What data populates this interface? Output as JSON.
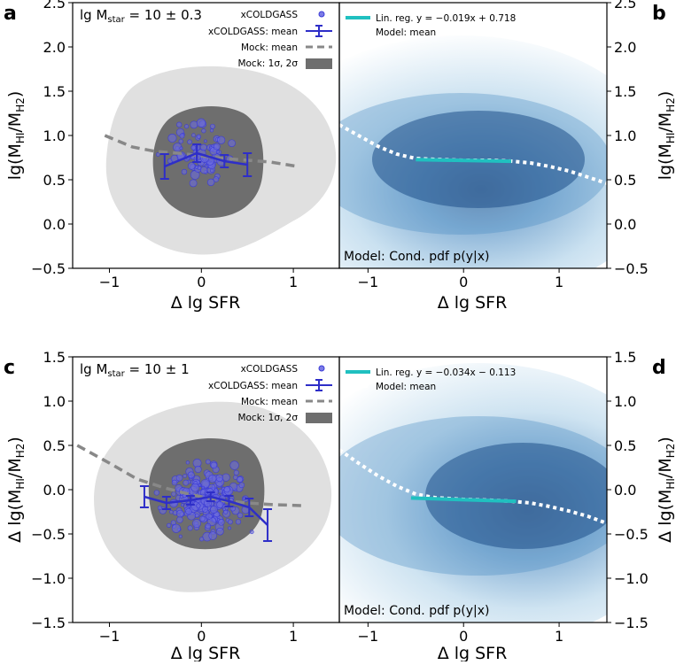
{
  "chart_data": [
    {
      "panel": "a",
      "type": "scatter",
      "xlabel": "Δ lg SFR",
      "ylabel": "lg(M_HI/M_H2)",
      "xlim": [
        -1.4,
        1.5
      ],
      "ylim": [
        -0.5,
        2.5
      ],
      "xticks": [
        "−1",
        "0",
        "1"
      ],
      "yticks": [
        "−0.5",
        "0.0",
        "0.5",
        "1.0",
        "1.5",
        "2.0",
        "2.5"
      ],
      "annotation": "lg M_star = 10 ± 0.3",
      "legend": [
        "xCOLDGASS",
        "xCOLDGASS: mean",
        "Mock: mean",
        "Mock: 1σ, 2σ"
      ],
      "mean_series": {
        "x": [
          -0.4,
          -0.05,
          0.25,
          0.5
        ],
        "y": [
          0.65,
          0.8,
          0.71,
          0.67
        ],
        "err": [
          0.14,
          0.1,
          0.07,
          0.13
        ]
      },
      "mock_mean": {
        "x": [
          -1.05,
          -0.75,
          -0.5,
          -0.25,
          0,
          0.25,
          0.5,
          0.75,
          1.05
        ],
        "y": [
          1.0,
          0.87,
          0.82,
          0.8,
          0.77,
          0.74,
          0.72,
          0.7,
          0.65
        ]
      }
    },
    {
      "panel": "b",
      "type": "heatmap",
      "xlabel": "Δ lg SFR",
      "ylabel": "lg(M_HI/M_H2)",
      "xlim": [
        -1.3,
        1.5
      ],
      "ylim": [
        -0.5,
        2.5
      ],
      "xticks": [
        "−1",
        "0",
        "1"
      ],
      "yticks": [
        "−0.5",
        "0.0",
        "0.5",
        "1.0",
        "1.5",
        "2.0",
        "2.5"
      ],
      "legend": [
        "Lin. reg. y = −0.019x + 0.718",
        "Model: mean"
      ],
      "annotation": "Model: Cond. pdf p(y|x)",
      "linreg": {
        "slope": -0.019,
        "intercept": 0.718,
        "xrange": [
          -0.5,
          0.5
        ]
      },
      "model_mean": {
        "x": [
          -1.3,
          -1.1,
          -0.9,
          -0.7,
          -0.5,
          -0.3,
          0,
          0.3,
          0.5,
          0.7,
          0.9,
          1.1,
          1.3,
          1.5
        ],
        "y": [
          1.12,
          1.0,
          0.88,
          0.79,
          0.74,
          0.73,
          0.72,
          0.72,
          0.71,
          0.69,
          0.65,
          0.6,
          0.53,
          0.46
        ]
      }
    },
    {
      "panel": "c",
      "type": "scatter",
      "xlabel": "Δ lg SFR",
      "ylabel": "Δ lg(M_HI/M_H2)",
      "xlim": [
        -1.4,
        1.5
      ],
      "ylim": [
        -1.5,
        1.5
      ],
      "xticks": [
        "−1",
        "0",
        "1"
      ],
      "yticks": [
        "−1.5",
        "−1.0",
        "−0.5",
        "0.0",
        "0.5",
        "1.0",
        "1.5"
      ],
      "annotation": "lg M_star = 10 ± 1",
      "legend": [
        "xCOLDGASS",
        "xCOLDGASS: mean",
        "Mock: mean",
        "Mock: 1σ, 2σ"
      ],
      "mean_series": {
        "x": [
          -0.62,
          -0.38,
          -0.12,
          0.1,
          0.3,
          0.52,
          0.72
        ],
        "y": [
          -0.08,
          -0.15,
          -0.12,
          -0.08,
          -0.13,
          -0.2,
          -0.4
        ],
        "err": [
          0.12,
          0.07,
          0.05,
          0.05,
          0.06,
          0.1,
          0.18
        ]
      },
      "mock_mean": {
        "x": [
          -1.35,
          -1.0,
          -0.7,
          -0.4,
          -0.1,
          0.2,
          0.5,
          0.8,
          1.1
        ],
        "y": [
          0.5,
          0.3,
          0.12,
          0.02,
          -0.06,
          -0.12,
          -0.15,
          -0.17,
          -0.18
        ]
      }
    },
    {
      "panel": "d",
      "type": "heatmap",
      "xlabel": "Δ lg SFR",
      "ylabel": "Δ lg(M_HI/M_H2)",
      "xlim": [
        -1.3,
        1.5
      ],
      "ylim": [
        -1.5,
        1.5
      ],
      "xticks": [
        "−1",
        "0",
        "1"
      ],
      "yticks": [
        "−1.5",
        "−1.0",
        "−0.5",
        "0.0",
        "0.5",
        "1.0",
        "1.5"
      ],
      "legend": [
        "Lin. reg. y = −0.034x − 0.113",
        "Model: mean"
      ],
      "annotation": "Model: Cond. pdf p(y|x)",
      "linreg": {
        "slope": -0.034,
        "intercept": -0.113,
        "xrange": [
          -0.55,
          0.55
        ]
      },
      "model_mean": {
        "x": [
          -1.3,
          -1.1,
          -0.9,
          -0.7,
          -0.5,
          -0.3,
          0,
          0.3,
          0.5,
          0.7,
          0.9,
          1.1,
          1.3,
          1.5
        ],
        "y": [
          0.45,
          0.3,
          0.16,
          0.04,
          -0.05,
          -0.09,
          -0.11,
          -0.12,
          -0.13,
          -0.15,
          -0.19,
          -0.24,
          -0.3,
          -0.38
        ]
      }
    }
  ],
  "colors": {
    "points": "#3b3bd6",
    "mean": "#2e2ec8",
    "mock_mean": "#888888",
    "sigma1": "#6e6e6e",
    "sigma2": "#e0e0e0",
    "linreg": "#20c0c0",
    "model_mean": "#ffffff"
  }
}
